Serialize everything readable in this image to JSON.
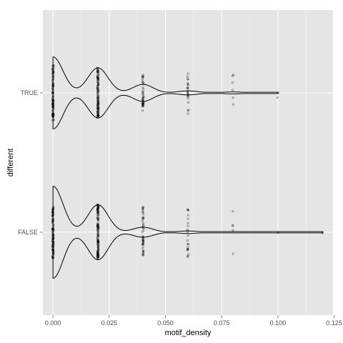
{
  "chart_data": {
    "type": "violin",
    "xlabel": "motif_density",
    "ylabel": "different",
    "xlim": [
      -0.0045,
      0.1245
    ],
    "x_ticks": [
      {
        "value": 0.0,
        "label": "0.000"
      },
      {
        "value": 0.025,
        "label": "0.025"
      },
      {
        "value": 0.05,
        "label": "0.050"
      },
      {
        "value": 0.075,
        "label": "0.075"
      },
      {
        "value": 0.1,
        "label": "0.100"
      },
      {
        "value": 0.125,
        "label": "0.125"
      }
    ],
    "categories": [
      "TRUE",
      "FALSE"
    ],
    "grid": true,
    "colors": {
      "panel": "#e5e5e5",
      "grid_major": "#ffffff",
      "grid_minor": "#f2f2f2",
      "points": "#000000",
      "outline": "#000000"
    },
    "groups": [
      {
        "category": "TRUE",
        "max_value": 0.1,
        "density_peaks": [
          {
            "x": 0.0,
            "width": 0.72
          },
          {
            "x": 0.02,
            "width": 0.5
          },
          {
            "x": 0.04,
            "width": 0.17
          },
          {
            "x": 0.06,
            "width": 0.04
          },
          {
            "x": 0.08,
            "width": 0.02
          }
        ],
        "point_columns": [
          {
            "x": 0.0,
            "spread": 0.55,
            "count": 90
          },
          {
            "x": 0.02,
            "spread": 0.5,
            "count": 110
          },
          {
            "x": 0.04,
            "spread": 0.36,
            "count": 40
          },
          {
            "x": 0.06,
            "spread": 0.47,
            "count": 22
          },
          {
            "x": 0.08,
            "spread": 0.45,
            "count": 6
          },
          {
            "x": 0.1,
            "spread": 0.25,
            "count": 2
          }
        ]
      },
      {
        "category": "FALSE",
        "max_value": 0.12,
        "density_peaks": [
          {
            "x": 0.0,
            "width": 0.92
          },
          {
            "x": 0.02,
            "width": 0.55
          },
          {
            "x": 0.04,
            "width": 0.1
          },
          {
            "x": 0.06,
            "width": 0.025
          },
          {
            "x": 0.08,
            "width": 0.01
          }
        ],
        "point_columns": [
          {
            "x": 0.0,
            "spread": 0.52,
            "count": 95
          },
          {
            "x": 0.02,
            "spread": 0.55,
            "count": 130
          },
          {
            "x": 0.04,
            "spread": 0.5,
            "count": 45
          },
          {
            "x": 0.06,
            "spread": 0.5,
            "count": 22
          },
          {
            "x": 0.08,
            "spread": 0.45,
            "count": 5
          },
          {
            "x": 0.1,
            "spread": 0.02,
            "count": 1
          },
          {
            "x": 0.12,
            "spread": 0.02,
            "count": 1
          }
        ]
      }
    ]
  }
}
